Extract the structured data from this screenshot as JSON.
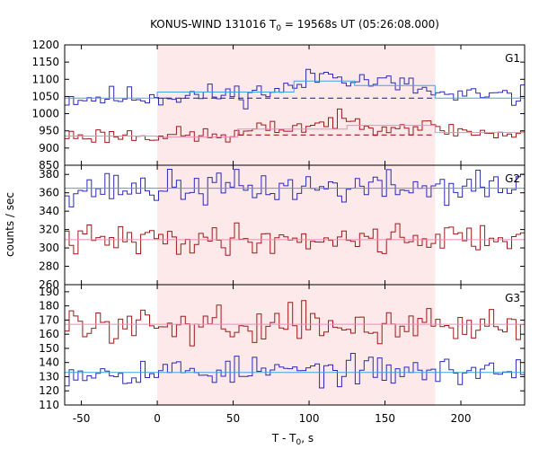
{
  "chart_data": {
    "type": "line",
    "title": "KONUS-WIND 131016 T",
    "title_sub": "0",
    "title_rest": " = 19568s UT (05:26:08.000)",
    "xlabel": "T - T",
    "xlabel_sub": "0",
    "xlabel_rest": ", s",
    "ylabel": "counts / sec",
    "xlim": [
      -61,
      242
    ],
    "xticks": [
      -50,
      0,
      50,
      100,
      150,
      200
    ],
    "shaded_interval": [
      0,
      183
    ],
    "shaded_color": "#fde8ea",
    "bin_width": 2.944,
    "colors": {
      "upper": "#2a2ab8",
      "lower": "#a01818",
      "fit_upper": "#3aa8e0",
      "fit_lower": "#f08ab8"
    },
    "panels": [
      {
        "label": "G1",
        "ylim": [
          850,
          1200
        ],
        "yticks": [
          850,
          900,
          950,
          1000,
          1050,
          1100,
          1150,
          1200
        ],
        "series": [
          {
            "role": "upper",
            "anchors": [
              [
                -61,
                1045
              ],
              [
                0,
                1050
              ],
              [
                60,
                1058
              ],
              [
                90,
                1075
              ],
              [
                105,
                1110
              ],
              [
                120,
                1120
              ],
              [
                130,
                1100
              ],
              [
                160,
                1085
              ],
              [
                183,
                1060
              ],
              [
                190,
                1050
              ],
              [
                242,
                1048
              ]
            ],
            "noise": 16,
            "seed": 11,
            "fit": [
              [
                -61,
                1045
              ],
              [
                0,
                1045
              ],
              [
                0,
                1063
              ],
              [
                90,
                1063
              ],
              [
                90,
                1095
              ],
              [
                130,
                1095
              ],
              [
                130,
                1082
              ],
              [
                183,
                1082
              ],
              [
                183,
                1045
              ],
              [
                242,
                1045
              ]
            ],
            "background": [
              [
                0,
                1045
              ],
              [
                183,
                1045
              ]
            ]
          },
          {
            "role": "lower",
            "anchors": [
              [
                -61,
                935
              ],
              [
                0,
                938
              ],
              [
                55,
                935
              ],
              [
                60,
                950
              ],
              [
                100,
                965
              ],
              [
                120,
                980
              ],
              [
                150,
                965
              ],
              [
                183,
                960
              ],
              [
                200,
                950
              ],
              [
                242,
                935
              ]
            ],
            "noise": 12,
            "seed": 23,
            "fit": [
              [
                -61,
                935
              ],
              [
                0,
                935
              ],
              [
                0,
                932
              ],
              [
                53,
                932
              ],
              [
                53,
                955
              ],
              [
                125,
                955
              ],
              [
                125,
                966
              ],
              [
                183,
                966
              ],
              [
                183,
                945
              ],
              [
                242,
                945
              ]
            ],
            "background": [
              [
                53,
                938
              ],
              [
                183,
                938
              ]
            ]
          }
        ]
      },
      {
        "label": "G2",
        "ylim": [
          260,
          390
        ],
        "yticks": [
          260,
          280,
          300,
          320,
          340,
          360,
          380
        ],
        "series": [
          {
            "role": "upper",
            "anchors": [
              [
                -61,
                365
              ],
              [
                242,
                366
              ]
            ],
            "noise": 9,
            "seed": 37,
            "fit": [
              [
                -61,
                365
              ],
              [
                242,
                365
              ]
            ],
            "background": []
          },
          {
            "role": "lower",
            "anchors": [
              [
                -61,
                308
              ],
              [
                242,
                312
              ]
            ],
            "noise": 8,
            "seed": 41,
            "fit": [
              [
                -61,
                309
              ],
              [
                242,
                309
              ]
            ],
            "background": []
          }
        ]
      },
      {
        "label": "G3",
        "ylim": [
          110,
          195
        ],
        "yticks": [
          110,
          120,
          130,
          140,
          150,
          160,
          170,
          180,
          190
        ],
        "series": [
          {
            "role": "upper",
            "anchors": [
              [
                -61,
                134
              ],
              [
                242,
                134
              ]
            ],
            "noise": 5,
            "seed": 53,
            "fit": [
              [
                -61,
                133
              ],
              [
                242,
                133
              ]
            ],
            "background": []
          },
          {
            "role": "lower",
            "anchors": [
              [
                -61,
                167
              ],
              [
                242,
                167
              ]
            ],
            "noise": 6,
            "seed": 59,
            "fit": [
              [
                -61,
                167
              ],
              [
                242,
                167
              ]
            ],
            "background": []
          }
        ]
      }
    ]
  }
}
